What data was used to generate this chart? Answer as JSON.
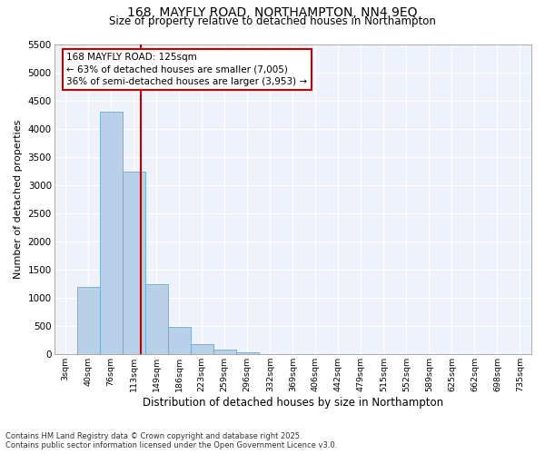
{
  "title": "168, MAYFLY ROAD, NORTHAMPTON, NN4 9EQ",
  "subtitle": "Size of property relative to detached houses in Northampton",
  "xlabel": "Distribution of detached houses by size in Northampton",
  "ylabel": "Number of detached properties",
  "categories": [
    "3sqm",
    "40sqm",
    "76sqm",
    "113sqm",
    "149sqm",
    "186sqm",
    "223sqm",
    "259sqm",
    "296sqm",
    "332sqm",
    "369sqm",
    "406sqm",
    "442sqm",
    "479sqm",
    "515sqm",
    "552sqm",
    "589sqm",
    "625sqm",
    "662sqm",
    "698sqm",
    "735sqm"
  ],
  "values": [
    0,
    1200,
    4300,
    3250,
    1250,
    480,
    180,
    80,
    30,
    10,
    0,
    0,
    0,
    0,
    0,
    0,
    0,
    0,
    0,
    0,
    0
  ],
  "bar_color": "#b8d0e8",
  "bar_edge_color": "#6aaad4",
  "vline_color": "#c00000",
  "annotation_title": "168 MAYFLY ROAD: 125sqm",
  "annotation_line1": "← 63% of detached houses are smaller (7,005)",
  "annotation_line2": "36% of semi-detached houses are larger (3,953) →",
  "annotation_box_color": "#c00000",
  "ylim": [
    0,
    5500
  ],
  "yticks": [
    0,
    500,
    1000,
    1500,
    2000,
    2500,
    3000,
    3500,
    4000,
    4500,
    5000,
    5500
  ],
  "footer_line1": "Contains HM Land Registry data © Crown copyright and database right 2025.",
  "footer_line2": "Contains public sector information licensed under the Open Government Licence v3.0.",
  "plot_bg_color": "#eef2fa"
}
